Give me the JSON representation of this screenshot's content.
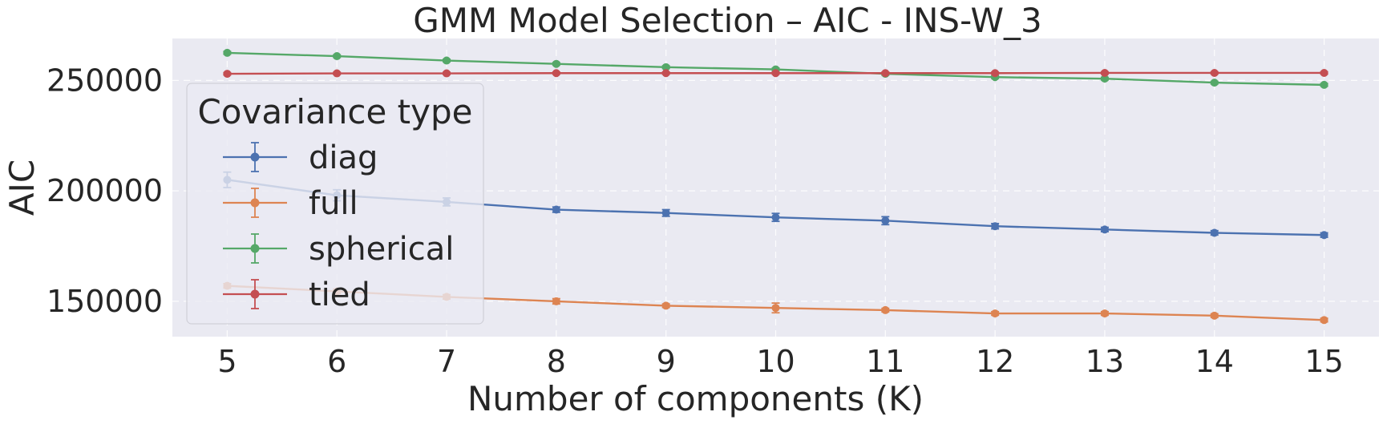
{
  "chart_data": {
    "type": "line",
    "title": "GMM Model Selection – AIC - INS-W_3",
    "xlabel": "Number of components (K)",
    "ylabel": "AIC",
    "x": [
      5,
      6,
      7,
      8,
      9,
      10,
      11,
      12,
      13,
      14,
      15
    ],
    "xlim": [
      4.5,
      15.5
    ],
    "ylim": [
      134000,
      269000
    ],
    "yticks": [
      150000,
      200000,
      250000
    ],
    "grid": true,
    "background": "#eaeaf2",
    "legend": {
      "title": "Covariance type",
      "placement": "upper-left"
    },
    "series": [
      {
        "name": "diag",
        "color": "#4c72b0",
        "values": [
          205000,
          198000,
          195000,
          191500,
          190000,
          188000,
          186500,
          184000,
          182500,
          181000,
          180000
        ],
        "errors": [
          3500,
          2500,
          1800,
          1200,
          1500,
          1800,
          1800,
          1200,
          1000,
          1000,
          1000
        ]
      },
      {
        "name": "full",
        "color": "#dd8452",
        "values": [
          157000,
          154500,
          152000,
          150000,
          148000,
          147000,
          146000,
          144500,
          144500,
          143500,
          141500
        ],
        "errors": [
          1000,
          1000,
          1000,
          1200,
          800,
          2200,
          800,
          800,
          800,
          800,
          800
        ]
      },
      {
        "name": "spherical",
        "color": "#55a868",
        "values": [
          262500,
          261000,
          259000,
          257500,
          256000,
          255000,
          253000,
          251500,
          250800,
          249000,
          248000
        ],
        "errors": [
          600,
          600,
          600,
          600,
          600,
          600,
          600,
          600,
          600,
          600,
          600
        ]
      },
      {
        "name": "tied",
        "color": "#c44e52",
        "values": [
          253000,
          253200,
          253200,
          253300,
          253300,
          253300,
          253300,
          253300,
          253400,
          253400,
          253400
        ],
        "errors": [
          500,
          500,
          500,
          500,
          500,
          500,
          500,
          500,
          500,
          500,
          500
        ]
      }
    ]
  }
}
